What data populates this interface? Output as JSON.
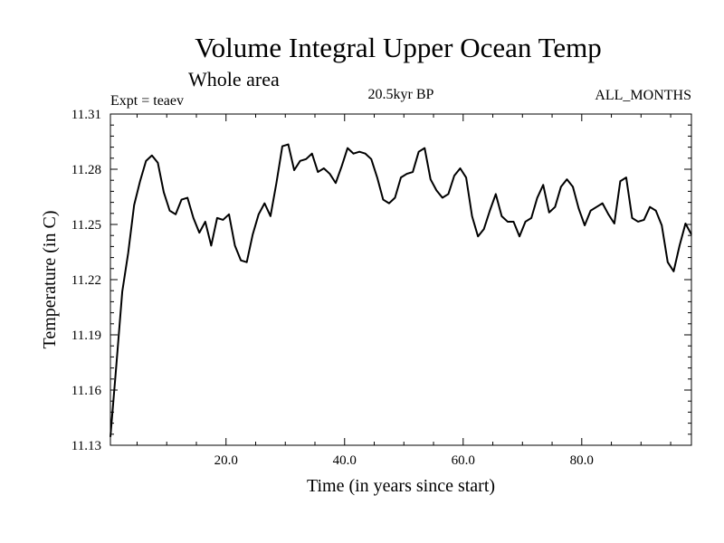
{
  "chart_data": {
    "type": "line",
    "title": "Volume Integral Upper Ocean Temp",
    "subtitle": "Whole area",
    "experiment": "Expt = teaev",
    "period": "20.5kyr BP",
    "months": "ALL_MONTHS",
    "xlabel": "Time (in years since start)",
    "ylabel": "Temperature (in C)",
    "xlim": [
      0.5,
      98.5
    ],
    "ylim": [
      11.13,
      11.31
    ],
    "x_ticks": [
      20,
      40,
      60,
      80
    ],
    "x_tick_labels": [
      "20.0",
      "40.0",
      "60.0",
      "80.0"
    ],
    "y_ticks": [
      11.13,
      11.16,
      11.19,
      11.22,
      11.25,
      11.28,
      11.31
    ],
    "y_tick_labels": [
      "11.13",
      "11.16",
      "11.19",
      "11.22",
      "11.25",
      "11.28",
      "11.31"
    ],
    "grid": false,
    "series": [
      {
        "name": "teaev",
        "x": [
          0.5,
          1.5,
          2.5,
          3.5,
          4.5,
          5.5,
          6.5,
          7.5,
          8.5,
          9.5,
          10.5,
          11.5,
          12.5,
          13.5,
          14.5,
          15.5,
          16.5,
          17.5,
          18.5,
          19.5,
          20.5,
          21.5,
          22.5,
          23.5,
          24.5,
          25.5,
          26.5,
          27.5,
          28.5,
          29.5,
          30.5,
          31.5,
          32.5,
          33.5,
          34.5,
          35.5,
          36.5,
          37.5,
          38.5,
          39.5,
          40.5,
          41.5,
          42.5,
          43.5,
          44.5,
          45.5,
          46.5,
          47.5,
          48.5,
          49.5,
          50.5,
          51.5,
          52.5,
          53.5,
          54.5,
          55.5,
          56.5,
          57.5,
          58.5,
          59.5,
          60.5,
          61.5,
          62.5,
          63.5,
          64.5,
          65.5,
          66.5,
          67.5,
          68.5,
          69.5,
          70.5,
          71.5,
          72.5,
          73.5,
          74.5,
          75.5,
          76.5,
          77.5,
          78.5,
          79.5,
          80.5,
          81.5,
          82.5,
          83.5,
          84.5,
          85.5,
          86.5,
          87.5,
          88.5,
          89.5,
          90.5,
          91.5,
          92.5,
          93.5,
          94.5,
          95.5,
          96.5,
          97.5,
          98.5
        ],
        "values": [
          11.1345,
          11.1735,
          11.2135,
          11.2345,
          11.2605,
          11.2735,
          11.2845,
          11.2875,
          11.2835,
          11.2675,
          11.2575,
          11.2555,
          11.2635,
          11.2645,
          11.2535,
          11.2455,
          11.2515,
          11.2385,
          11.2535,
          11.2525,
          11.2555,
          11.2385,
          11.2305,
          11.2295,
          11.2445,
          11.2555,
          11.2615,
          11.2545,
          11.2725,
          11.2925,
          11.2935,
          11.2795,
          11.2845,
          11.2855,
          11.2885,
          11.2785,
          11.2805,
          11.2775,
          11.2725,
          11.2815,
          11.2915,
          11.2885,
          11.2895,
          11.2885,
          11.2855,
          11.2755,
          11.2635,
          11.2615,
          11.2645,
          11.2755,
          11.2775,
          11.2785,
          11.2895,
          11.2915,
          11.2745,
          11.2685,
          11.2645,
          11.2665,
          11.2765,
          11.2805,
          11.2755,
          11.2545,
          11.2435,
          11.2475,
          11.2575,
          11.2665,
          11.2545,
          11.2515,
          11.2515,
          11.2435,
          11.2515,
          11.2535,
          11.2645,
          11.2715,
          11.2565,
          11.2595,
          11.2705,
          11.2745,
          11.2705,
          11.2585,
          11.2495,
          11.2575,
          11.2595,
          11.2615,
          11.2555,
          11.2505,
          11.2735,
          11.2755,
          11.2535,
          11.2515,
          11.2525,
          11.2595,
          11.2575,
          11.2495,
          11.2295,
          11.2245,
          11.2385,
          11.2505,
          11.2445
        ]
      }
    ]
  }
}
